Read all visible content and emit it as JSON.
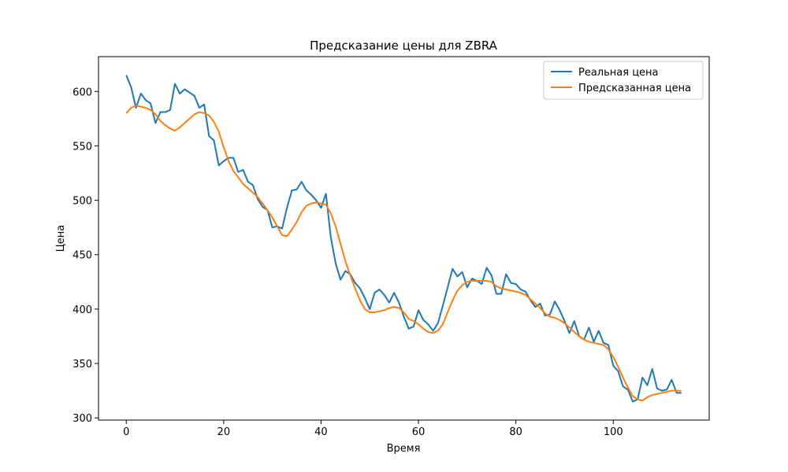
{
  "chart_data": {
    "type": "line",
    "title": "Предсказание цены для ZBRA",
    "xlabel": "Время",
    "ylabel": "Цена",
    "xlim": [
      -5.7,
      119.7
    ],
    "ylim": [
      298,
      632
    ],
    "x_ticks": [
      0,
      20,
      40,
      60,
      80,
      100
    ],
    "y_ticks": [
      300,
      350,
      400,
      450,
      500,
      550,
      600
    ],
    "grid": false,
    "legend_position": "top-right",
    "series": [
      {
        "name": "Реальная цена",
        "color": "#1f77b4",
        "values": [
          615,
          604,
          585,
          598,
          592,
          589,
          571,
          581,
          581,
          583,
          607,
          598,
          602,
          599,
          596,
          585,
          588,
          559,
          555,
          532,
          536,
          539,
          539,
          526,
          528,
          517,
          514,
          501,
          494,
          491,
          475,
          476,
          474,
          493,
          509,
          510,
          517,
          509,
          505,
          500,
          493,
          506,
          466,
          442,
          427,
          435,
          432,
          424,
          419,
          410,
          400,
          415,
          418,
          413,
          406,
          415,
          406,
          393,
          382,
          384,
          399,
          390,
          386,
          380,
          387,
          403,
          420,
          437,
          430,
          434,
          420,
          428,
          426,
          423,
          438,
          431,
          414,
          414,
          432,
          424,
          423,
          418,
          416,
          408,
          402,
          405,
          394,
          395,
          407,
          399,
          389,
          378,
          389,
          375,
          372,
          383,
          370,
          380,
          369,
          367,
          348,
          343,
          329,
          326,
          315,
          317,
          337,
          330,
          345,
          327,
          325,
          326,
          335,
          323,
          323
        ]
      },
      {
        "name": "Предсказанная цена",
        "color": "#ff7f0e",
        "values": [
          580,
          585,
          587,
          586,
          585,
          583,
          579,
          573,
          569,
          566,
          564,
          567,
          571,
          575,
          579,
          581,
          580,
          578,
          572,
          563,
          549,
          536,
          527,
          521,
          515,
          511,
          507,
          503,
          497,
          491,
          484,
          476,
          468,
          467,
          473,
          480,
          489,
          495,
          497,
          498,
          497,
          496,
          488,
          476,
          460,
          444,
          431,
          419,
          408,
          400,
          397,
          397,
          398,
          399,
          401,
          402,
          401,
          397,
          391,
          389,
          386,
          382,
          379,
          378,
          380,
          386,
          397,
          408,
          417,
          422,
          425,
          426,
          426,
          426,
          426,
          425,
          421,
          419,
          418,
          417,
          416,
          415,
          413,
          409,
          405,
          401,
          396,
          393,
          392,
          390,
          387,
          383,
          379,
          375,
          372,
          370,
          369,
          368,
          367,
          363,
          356,
          347,
          337,
          328,
          320,
          317,
          316,
          319,
          321,
          322,
          323,
          324,
          325,
          325,
          325
        ]
      }
    ]
  }
}
